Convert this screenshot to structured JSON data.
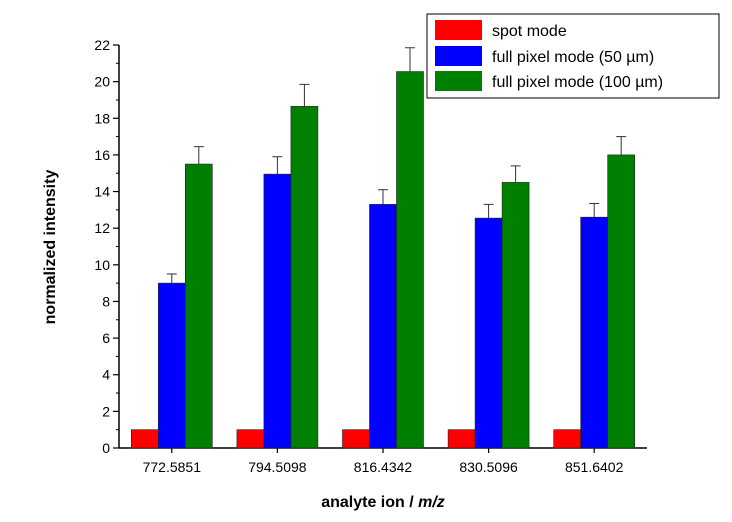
{
  "chart_data": {
    "type": "bar",
    "title": "",
    "xlabel": "analyte ion / ",
    "xlabel_italic": "m/z",
    "ylabel": "normalized intensity",
    "ylim": [
      0,
      22
    ],
    "yticks": [
      0,
      2,
      4,
      6,
      8,
      10,
      12,
      14,
      16,
      18,
      20,
      22
    ],
    "categories": [
      "772.5851",
      "794.5098",
      "816.4342",
      "830.5096",
      "851.6402"
    ],
    "series": [
      {
        "name": "spot mode",
        "color": "#ff0000",
        "values": [
          1,
          1,
          1,
          1,
          1
        ],
        "errors": [
          0,
          0,
          0,
          0,
          0
        ]
      },
      {
        "name": "full pixel mode (50 µm)",
        "color": "#0000ff",
        "values": [
          9.0,
          14.95,
          13.3,
          12.55,
          12.6
        ],
        "errors": [
          0.5,
          0.95,
          0.8,
          0.75,
          0.75
        ]
      },
      {
        "name": "full pixel mode (100 µm)",
        "color": "#008000",
        "values": [
          15.5,
          18.65,
          20.55,
          14.5,
          16.0
        ],
        "errors": [
          0.95,
          1.2,
          1.3,
          0.9,
          1.0
        ]
      }
    ],
    "legend_position": "top-right",
    "grid": false
  }
}
